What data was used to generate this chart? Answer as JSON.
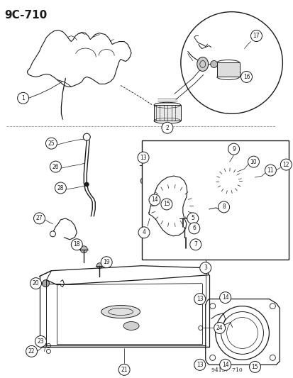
{
  "title": "9C–710",
  "footer": "94157  710",
  "bg": "#ffffff",
  "lc": "#1a1a1a",
  "figsize": [
    4.14,
    5.33
  ],
  "dpi": 100
}
